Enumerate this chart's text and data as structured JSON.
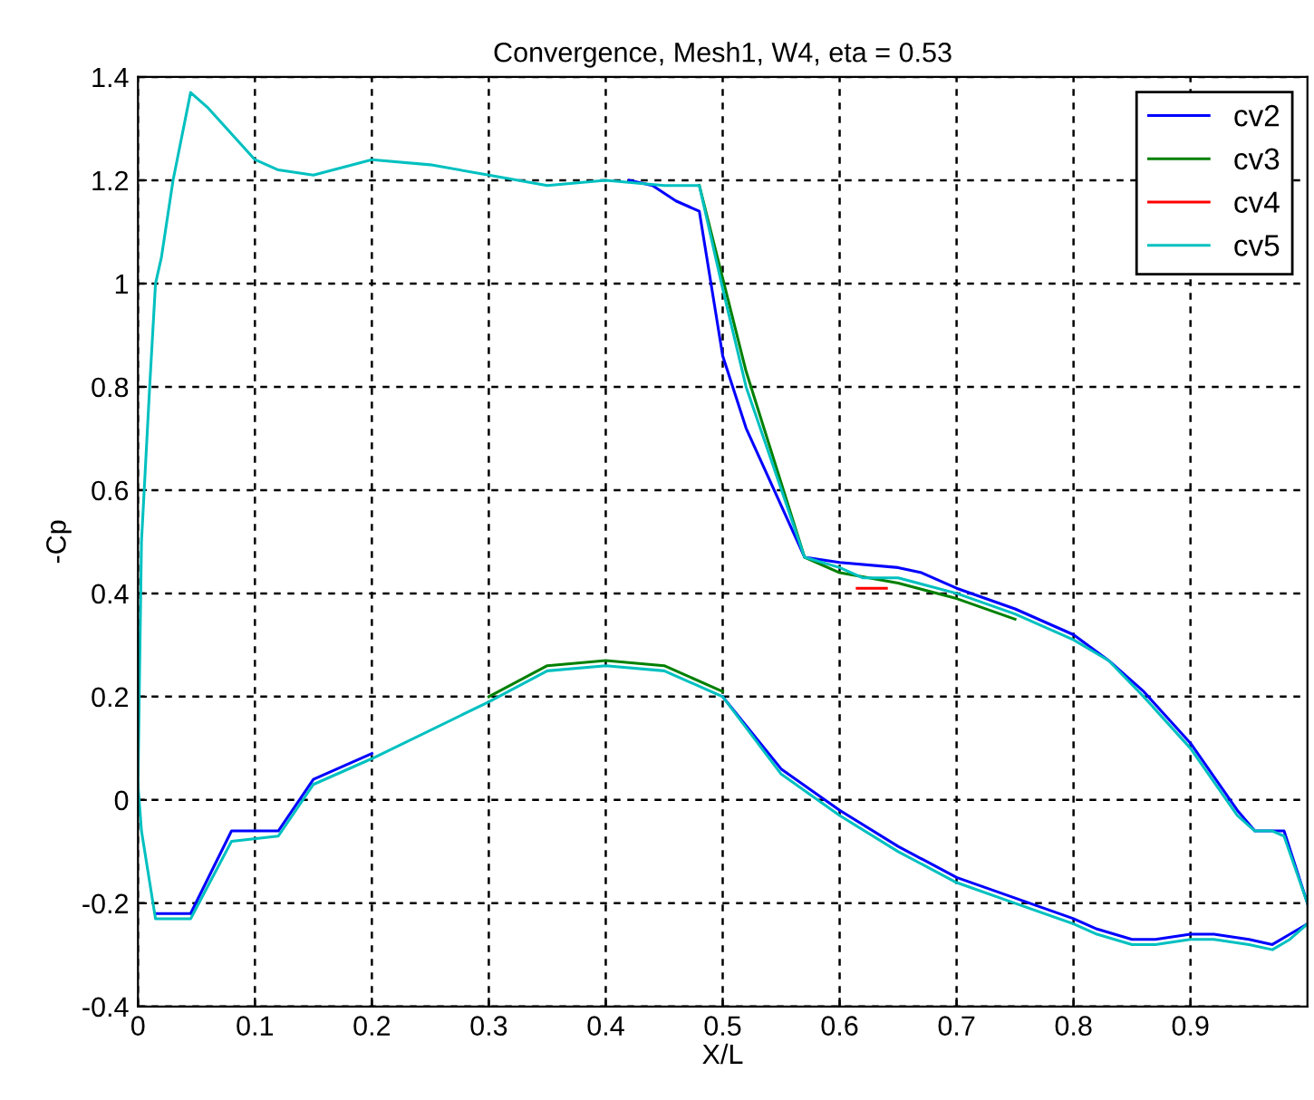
{
  "chart_data": {
    "type": "line",
    "title": "Convergence, Mesh1, W4, eta = 0.53",
    "xlabel": "X/L",
    "ylabel": "-Cp",
    "xlim": [
      0,
      1
    ],
    "ylim": [
      -0.4,
      1.4
    ],
    "xticks": [
      0,
      0.1,
      0.2,
      0.3,
      0.4,
      0.5,
      0.6,
      0.7,
      0.8,
      0.9
    ],
    "yticks": [
      -0.4,
      -0.2,
      0,
      0.2,
      0.4,
      0.6,
      0.8,
      1,
      1.2,
      1.4
    ],
    "grid": true,
    "legend": "top right",
    "line_style": "solid",
    "marker": "none",
    "series": [
      {
        "name": "cv2",
        "color": "#0000ff",
        "x": [
          0.42,
          0.44,
          0.46,
          0.48,
          0.5,
          0.52,
          0.57,
          0.6,
          0.65,
          0.67,
          0.7,
          0.75,
          0.8,
          0.83,
          0.86,
          0.9,
          0.94,
          0.955,
          0.97,
          0.98,
          1.0,
          null,
          0.015,
          0.045,
          0.08,
          0.12,
          0.15,
          0.2,
          0.25,
          0.5,
          0.55,
          0.6,
          0.65,
          0.7,
          0.75,
          0.8,
          0.82,
          0.85,
          0.87,
          0.9,
          0.92,
          0.95,
          0.97,
          0.985,
          1.0
        ],
        "values": [
          1.2,
          1.19,
          1.16,
          1.14,
          0.86,
          0.72,
          0.47,
          0.46,
          0.45,
          0.44,
          0.41,
          0.37,
          0.32,
          0.27,
          0.21,
          0.11,
          -0.02,
          -0.06,
          -0.06,
          -0.06,
          -0.2,
          null,
          -0.22,
          -0.22,
          -0.06,
          -0.06,
          0.04,
          0.09,
          null,
          0.2,
          0.06,
          -0.02,
          -0.09,
          -0.15,
          -0.19,
          -0.23,
          -0.25,
          -0.27,
          -0.27,
          -0.26,
          -0.26,
          -0.27,
          -0.28,
          -0.26,
          -0.24
        ]
      },
      {
        "name": "cv3",
        "color": "#008000",
        "x": [
          0.48,
          0.5,
          0.52,
          0.57,
          0.6,
          0.65,
          0.7,
          0.75,
          null,
          0.3,
          0.35,
          0.4,
          0.45,
          0.5
        ],
        "values": [
          1.19,
          1.01,
          0.83,
          0.47,
          0.44,
          0.42,
          0.39,
          0.35,
          null,
          0.2,
          0.26,
          0.27,
          0.26,
          0.21
        ]
      },
      {
        "name": "cv4",
        "color": "#ff0000",
        "x": [
          0.615,
          0.64
        ],
        "values": [
          0.41,
          0.41
        ]
      },
      {
        "name": "cv5",
        "color": "#00c0c0",
        "x": [
          0,
          0.003,
          0.01,
          0.015,
          0.02,
          0.03,
          0.045,
          0.06,
          0.08,
          0.1,
          0.12,
          0.15,
          0.2,
          0.25,
          0.3,
          0.35,
          0.4,
          0.45,
          0.48,
          0.5,
          0.52,
          0.57,
          0.6,
          0.62,
          0.65,
          0.7,
          0.75,
          0.8,
          0.83,
          0.86,
          0.9,
          0.94,
          0.955,
          0.97,
          0.98,
          1.0,
          null,
          0,
          0.003,
          0.015,
          0.045,
          0.08,
          0.12,
          0.15,
          0.2,
          0.3,
          0.35,
          0.4,
          0.45,
          0.5,
          0.55,
          0.6,
          0.65,
          0.7,
          0.75,
          0.8,
          0.82,
          0.85,
          0.87,
          0.9,
          0.92,
          0.95,
          0.97,
          0.985,
          1.0
        ],
        "values": [
          0.03,
          0.5,
          0.8,
          1.0,
          1.05,
          1.2,
          1.37,
          1.34,
          1.29,
          1.24,
          1.22,
          1.21,
          1.24,
          1.23,
          1.21,
          1.19,
          1.2,
          1.19,
          1.19,
          0.99,
          0.8,
          0.47,
          0.45,
          0.43,
          0.43,
          0.4,
          0.36,
          0.31,
          0.27,
          0.2,
          0.1,
          -0.03,
          -0.06,
          -0.06,
          -0.07,
          -0.2,
          null,
          0.03,
          -0.06,
          -0.23,
          -0.23,
          -0.08,
          -0.07,
          0.03,
          0.08,
          0.19,
          0.25,
          0.26,
          0.25,
          0.2,
          0.05,
          -0.03,
          -0.1,
          -0.16,
          -0.2,
          -0.24,
          -0.26,
          -0.28,
          -0.28,
          -0.27,
          -0.27,
          -0.28,
          -0.29,
          -0.27,
          -0.24
        ]
      }
    ]
  }
}
